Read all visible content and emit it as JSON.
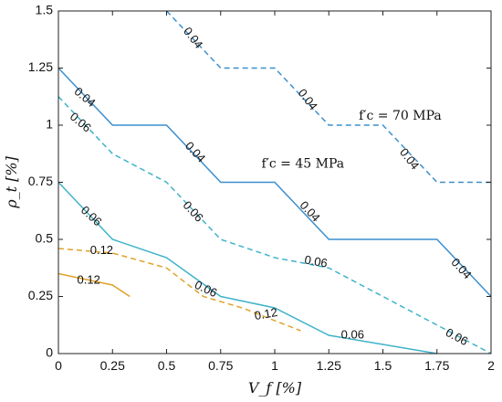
{
  "chart_data": {
    "type": "line",
    "xlabel": "V_f [%]",
    "ylabel": "ρ_t [%]",
    "xlim": [
      0,
      2
    ],
    "ylim": [
      0,
      1.5
    ],
    "x_ticks": [
      "0",
      "0.25",
      "0.5",
      "0.75",
      "1",
      "1.25",
      "1.5",
      "1.75",
      "2"
    ],
    "y_ticks": [
      "0",
      "0.25",
      "0.5",
      "0.75",
      "1",
      "1.25",
      "1.5"
    ],
    "grid": false,
    "series": [
      {
        "group": "f'c = 70 MPa",
        "level": "0.04",
        "style": "dashed",
        "color": "#3b8fce",
        "x": [
          0.5,
          0.75,
          1.0,
          1.25,
          1.5,
          1.75,
          2.0
        ],
        "y": [
          1.5,
          1.25,
          1.25,
          1.0,
          1.0,
          0.75,
          0.75
        ]
      },
      {
        "group": "f'c = 70 MPa",
        "level": "0.06",
        "style": "dashed",
        "color": "#3fb3c9",
        "x": [
          0.0,
          0.25,
          0.5,
          0.75,
          1.0,
          1.25,
          1.5,
          1.75,
          2.0
        ],
        "y": [
          1.125,
          0.875,
          0.75,
          0.5,
          0.42,
          0.375,
          0.25,
          0.125,
          0.0
        ]
      },
      {
        "group": "f'c = 70 MPa",
        "level": "0.12",
        "style": "dashed",
        "color": "#e0a22b",
        "x": [
          0.0,
          0.25,
          0.5,
          0.67,
          0.85,
          1.12
        ],
        "y": [
          0.46,
          0.44,
          0.375,
          0.25,
          0.2,
          0.1
        ]
      },
      {
        "group": "f'c = 45 MPa",
        "level": "0.04",
        "style": "solid",
        "color": "#3b8fce",
        "x": [
          0.0,
          0.25,
          0.5,
          0.75,
          1.0,
          1.25,
          1.5,
          1.75,
          2.0
        ],
        "y": [
          1.25,
          1.0,
          1.0,
          0.75,
          0.75,
          0.5,
          0.5,
          0.5,
          0.25
        ]
      },
      {
        "group": "f'c = 45 MPa",
        "level": "0.06",
        "style": "solid",
        "color": "#3fb3c9",
        "x": [
          0.0,
          0.25,
          0.5,
          0.75,
          1.0,
          1.25,
          1.5,
          1.75
        ],
        "y": [
          0.75,
          0.5,
          0.42,
          0.25,
          0.2,
          0.08,
          0.04,
          0.0
        ]
      },
      {
        "group": "f'c = 45 MPa",
        "level": "0.12",
        "style": "solid",
        "color": "#e0a22b",
        "x": [
          0.0,
          0.25,
          0.33
        ],
        "y": [
          0.35,
          0.3,
          0.25
        ]
      }
    ],
    "contour_labels": [
      {
        "text": "0.04",
        "x": 0.62,
        "y": 1.38,
        "angle": 52
      },
      {
        "text": "0.04",
        "x": 1.15,
        "y": 1.11,
        "angle": 52
      },
      {
        "text": "0.04",
        "x": 1.62,
        "y": 0.85,
        "angle": 52
      },
      {
        "text": "0.04",
        "x": 0.12,
        "y": 1.12,
        "angle": 40
      },
      {
        "text": "0.04",
        "x": 0.63,
        "y": 0.88,
        "angle": 47
      },
      {
        "text": "0.04",
        "x": 1.16,
        "y": 0.62,
        "angle": 47
      },
      {
        "text": "0.04",
        "x": 1.86,
        "y": 0.37,
        "angle": 47
      },
      {
        "text": "0.06",
        "x": 0.1,
        "y": 1.01,
        "angle": 40
      },
      {
        "text": "0.06",
        "x": 0.62,
        "y": 0.62,
        "angle": 47
      },
      {
        "text": "0.06",
        "x": 1.19,
        "y": 0.4,
        "angle": 10
      },
      {
        "text": "0.06",
        "x": 1.84,
        "y": 0.07,
        "angle": 28
      },
      {
        "text": "0.06",
        "x": 0.15,
        "y": 0.6,
        "angle": 42
      },
      {
        "text": "0.06",
        "x": 0.68,
        "y": 0.28,
        "angle": 25
      },
      {
        "text": "0.06",
        "x": 1.36,
        "y": 0.08,
        "angle": 0
      },
      {
        "text": "0.12",
        "x": 0.2,
        "y": 0.45,
        "angle": 0
      },
      {
        "text": "0.12",
        "x": 0.96,
        "y": 0.17,
        "angle": -10
      },
      {
        "text": "0.12",
        "x": 0.14,
        "y": 0.32,
        "angle": 0
      }
    ],
    "annotations": [
      {
        "text": "f′c = 70 MPa",
        "x": 1.58,
        "y": 1.04
      },
      {
        "text": "f′c = 45 MPa",
        "x": 1.13,
        "y": 0.83
      }
    ]
  }
}
